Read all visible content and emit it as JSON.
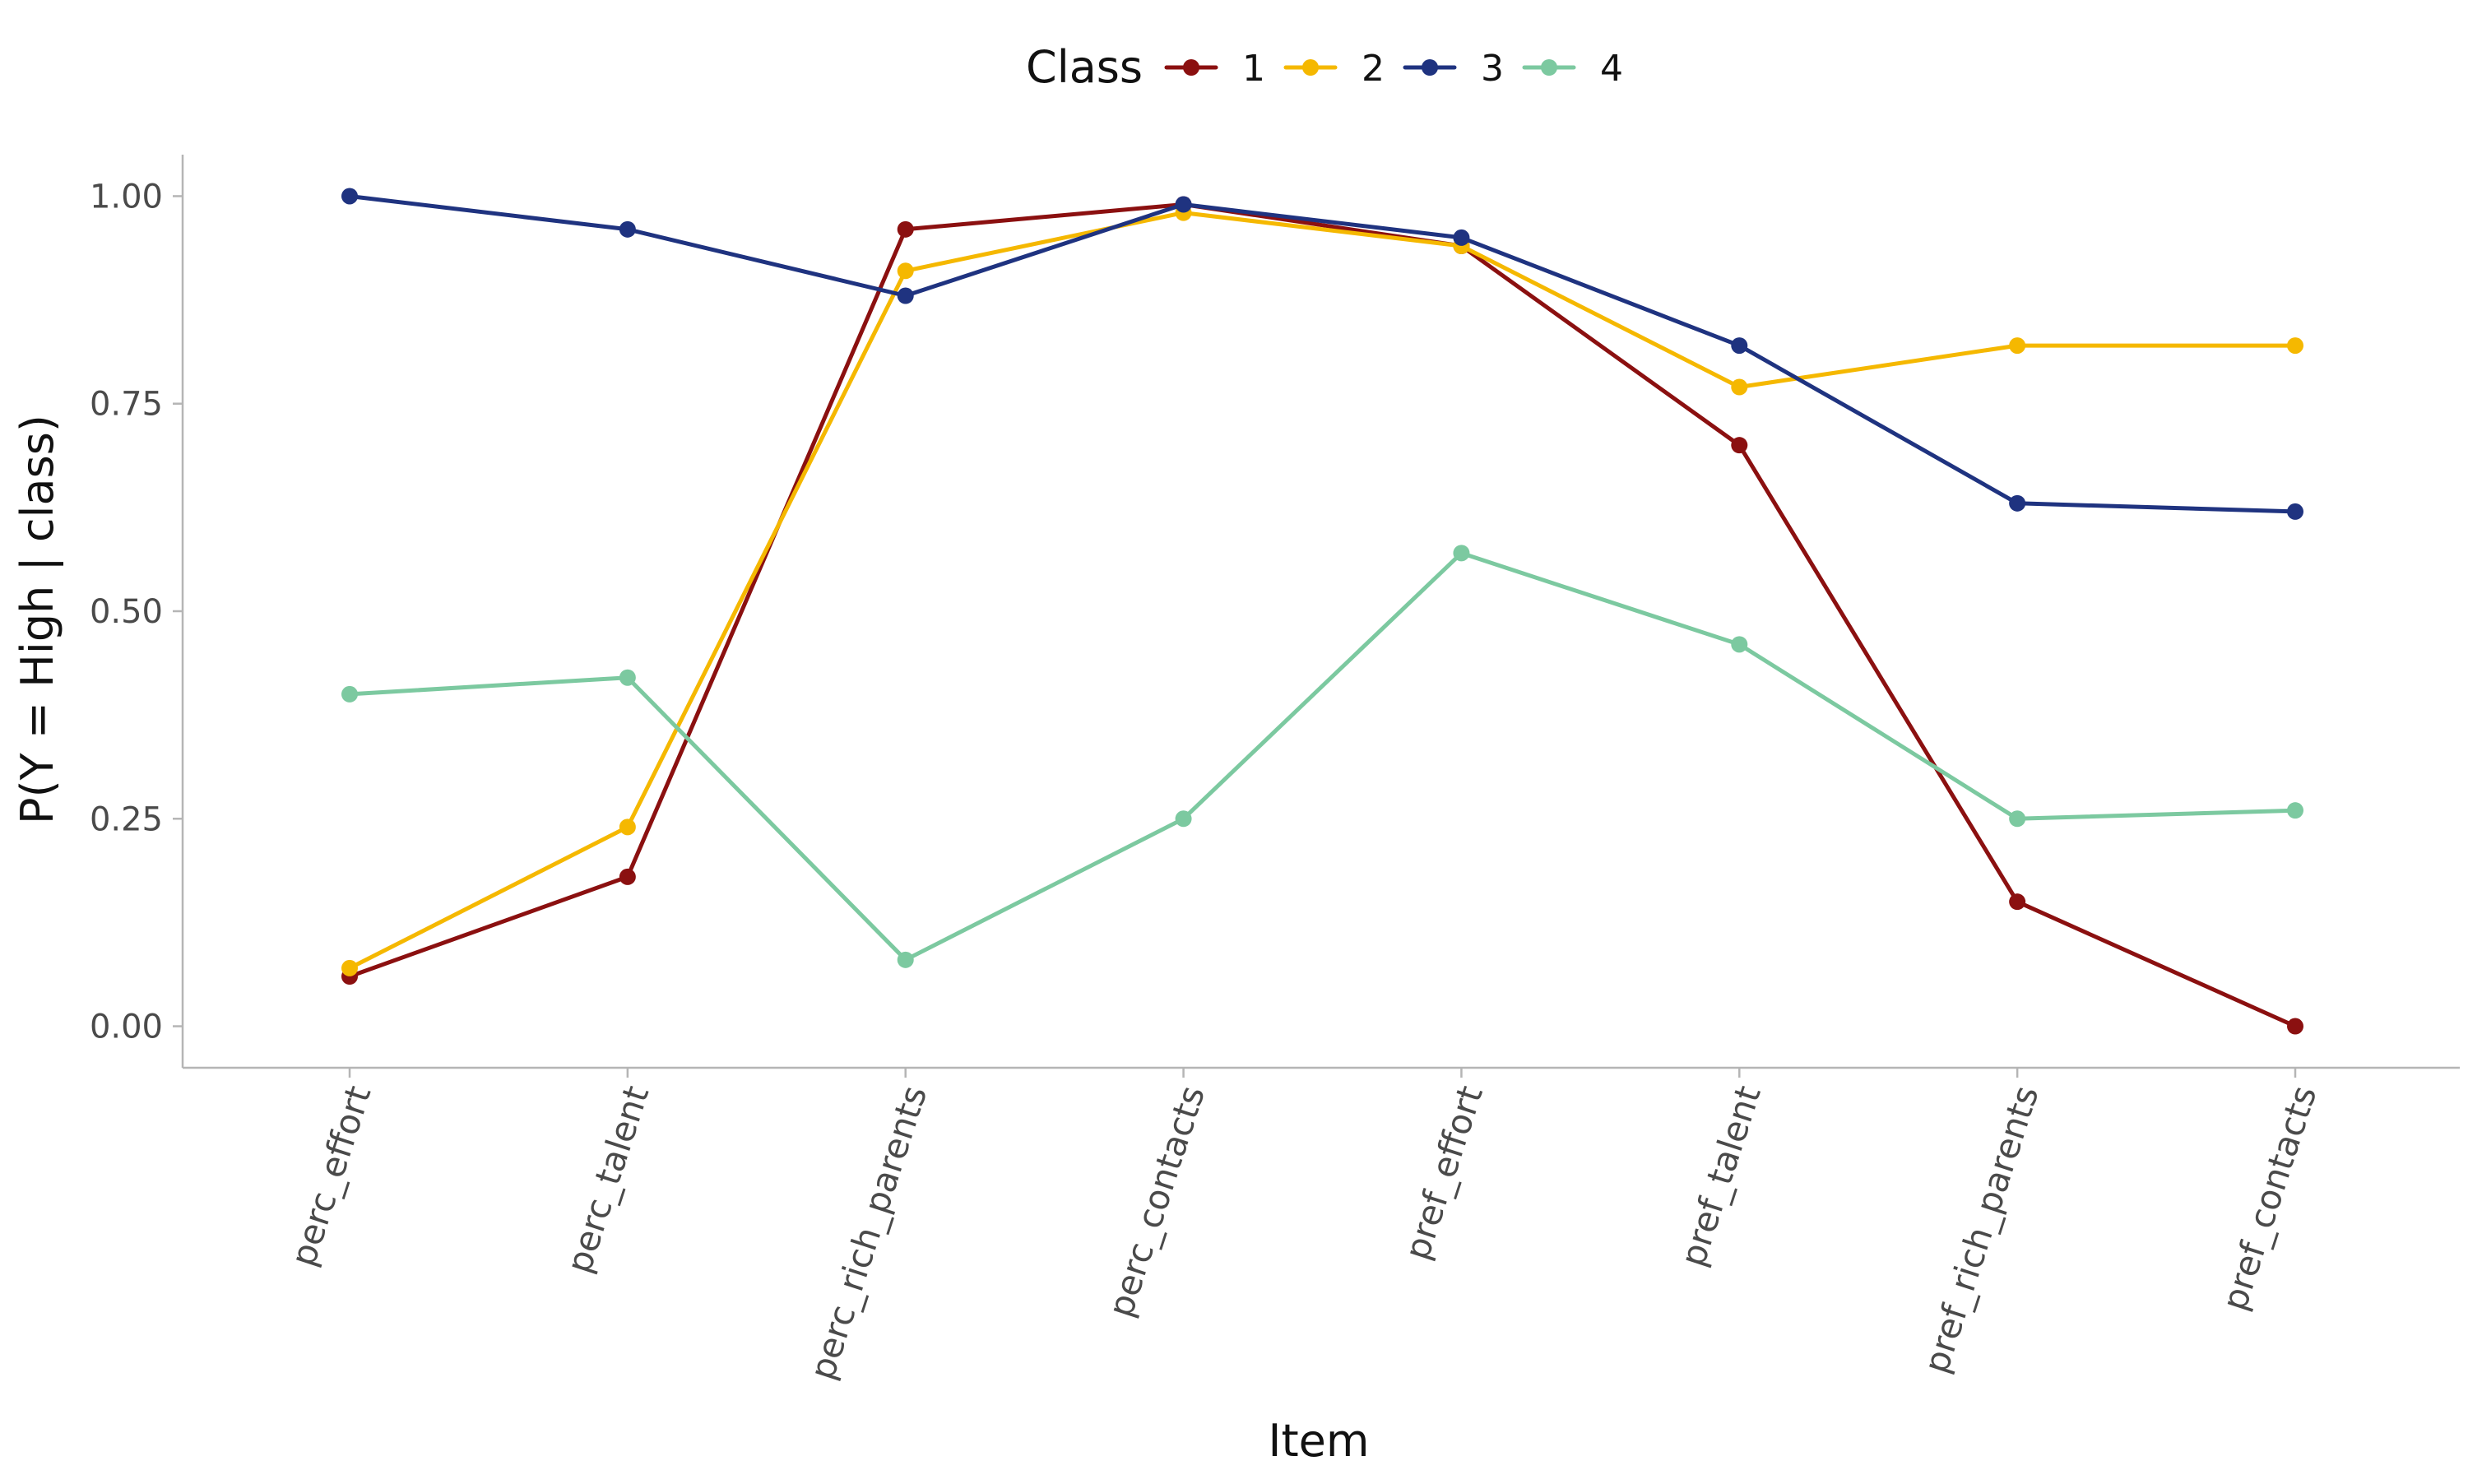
{
  "chart_data": {
    "type": "line",
    "xlabel": "Item",
    "ylabel": "P(Y = High | class)",
    "categories": [
      "perc_effort",
      "perc_talent",
      "perc_rich_parents",
      "perc_contacts",
      "pref_effort",
      "pref_talent",
      "pref_rich_parents",
      "pref_contacts"
    ],
    "ylim": [
      -0.05,
      1.05
    ],
    "yticks": [
      0.0,
      0.25,
      0.5,
      0.75,
      1.0
    ],
    "ytick_labels": [
      "0.00",
      "0.25",
      "0.50",
      "0.75",
      "1.00"
    ],
    "legend": {
      "title": "Class",
      "position": "top"
    },
    "grid": false,
    "series": [
      {
        "name": "1",
        "color": "#8B1010",
        "values": [
          0.06,
          0.18,
          0.96,
          0.99,
          0.94,
          0.7,
          0.15,
          0.0
        ]
      },
      {
        "name": "2",
        "color": "#F5B800",
        "values": [
          0.07,
          0.24,
          0.91,
          0.98,
          0.94,
          0.77,
          0.82,
          0.82
        ]
      },
      {
        "name": "3",
        "color": "#1F3380",
        "values": [
          1.0,
          0.96,
          0.88,
          0.99,
          0.95,
          0.82,
          0.63,
          0.62
        ]
      },
      {
        "name": "4",
        "color": "#7CC9A0",
        "values": [
          0.4,
          0.42,
          0.08,
          0.25,
          0.57,
          0.46,
          0.25,
          0.26
        ]
      }
    ]
  }
}
